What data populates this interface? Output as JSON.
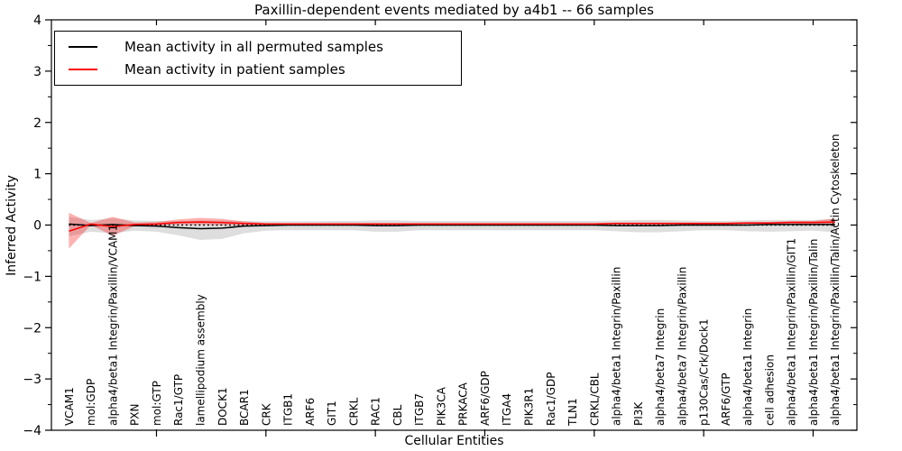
{
  "figure": {
    "title": "Paxillin-dependent events mediated by a4b1 -- 66 samples",
    "xlabel": "Cellular Entities",
    "ylabel": "Inferred Activity"
  },
  "legend": {
    "items": [
      {
        "label": "Mean activity in all permuted samples",
        "color": "#000000"
      },
      {
        "label": "Mean activity in patient samples",
        "color": "#ff0000"
      }
    ]
  },
  "chart_data": {
    "type": "line",
    "title": "Paxillin-dependent events mediated by a4b1 -- 66 samples",
    "xlabel": "Cellular Entities",
    "ylabel": "Inferred Activity",
    "ylim": [
      -4,
      4
    ],
    "yticks": [
      4,
      3,
      2,
      1,
      0,
      -1,
      -2,
      -3,
      -4
    ],
    "ytick_labels": [
      "4",
      "3",
      "2",
      "1",
      "0",
      "−1",
      "−2",
      "−3",
      "−4"
    ],
    "minor_ytick_step": 0.5,
    "xlim": [
      0.2,
      37.0
    ],
    "xticks": [
      5,
      10,
      15,
      20,
      25,
      30,
      35
    ],
    "grid": false,
    "legend_position": "upper left",
    "categories": [
      "VCAM1",
      "mol:GDP",
      "alpha4/beta1 Integrin/Paxillin/VCAM1",
      "PXN",
      "mol:GTP",
      "Rac1/GTP",
      "lamellipodium assembly",
      "DOCK1",
      "BCAR1",
      "CRK",
      "ITGB1",
      "ARF6",
      "GIT1",
      "CRKL",
      "RAC1",
      "CBL",
      "ITGB7",
      "PIK3CA",
      "PRKACA",
      "ARF6/GDP",
      "ITGA4",
      "PIK3R1",
      "Rac1/GDP",
      "TLN1",
      "CRKL/CBL",
      "alpha4/beta1 Integrin/Paxillin",
      "PI3K",
      "alpha4/beta7 Integrin",
      "alpha4/beta7 Integrin/Paxillin",
      "p130Cas/Crk/Dock1",
      "ARF6/GTP",
      "alpha4/beta1 Integrin",
      "cell adhesion",
      "alpha4/beta1 Integrin/Paxillin/GIT1",
      "alpha4/beta1 Integrin/Paxillin/Talin",
      "alpha4/beta1 Integrin/Paxillin/Talin/Actin Cytoskeleton"
    ],
    "series": [
      {
        "name": "Mean activity in all permuted samples",
        "color": "#000000",
        "style": "solid",
        "values": [
          0.02,
          -0.01,
          0.01,
          -0.01,
          -0.02,
          -0.05,
          -0.07,
          -0.06,
          -0.02,
          -0.01,
          0,
          0,
          0,
          0,
          -0.01,
          -0.01,
          0,
          0,
          0,
          0,
          0,
          0,
          0,
          0,
          0,
          -0.01,
          -0.01,
          -0.01,
          0,
          0,
          0,
          0,
          0.01,
          0.01,
          0.01,
          0.01
        ]
      },
      {
        "name": "Mean activity in patient samples",
        "color": "#ff0000",
        "style": "solid",
        "values": [
          -0.12,
          0.02,
          -0.03,
          0.01,
          0.02,
          0.05,
          0.06,
          0.05,
          0.03,
          0.02,
          0.02,
          0.02,
          0.02,
          0.02,
          0.02,
          0.02,
          0.02,
          0.02,
          0.02,
          0.02,
          0.02,
          0.02,
          0.02,
          0.02,
          0.02,
          0.03,
          0.03,
          0.03,
          0.03,
          0.03,
          0.03,
          0.04,
          0.04,
          0.05,
          0.05,
          0.06
        ]
      }
    ],
    "bands": [
      {
        "name": "permuted-range",
        "color": "rgba(0,0,0,0.13)",
        "hi": [
          0.16,
          0.1,
          0.13,
          0.09,
          0.08,
          0.08,
          0.09,
          0.09,
          0.08,
          0.07,
          0.07,
          0.07,
          0.08,
          0.08,
          0.09,
          0.09,
          0.08,
          0.08,
          0.08,
          0.08,
          0.08,
          0.08,
          0.08,
          0.08,
          0.08,
          0.09,
          0.1,
          0.1,
          0.09,
          0.08,
          0.08,
          0.09,
          0.1,
          0.1,
          0.1,
          0.12
        ],
        "lo": [
          -0.22,
          -0.13,
          -0.16,
          -0.11,
          -0.13,
          -0.2,
          -0.29,
          -0.27,
          -0.16,
          -0.11,
          -0.1,
          -0.1,
          -0.1,
          -0.1,
          -0.13,
          -0.13,
          -0.1,
          -0.1,
          -0.1,
          -0.1,
          -0.1,
          -0.1,
          -0.1,
          -0.1,
          -0.1,
          -0.12,
          -0.14,
          -0.14,
          -0.12,
          -0.1,
          -0.1,
          -0.12,
          -0.13,
          -0.12,
          -0.11,
          -0.14
        ]
      },
      {
        "name": "patient-range",
        "color": "rgba(255,0,0,0.30)",
        "hi": [
          0.24,
          0.04,
          0.16,
          0.05,
          0.06,
          0.11,
          0.14,
          0.12,
          0.07,
          0.04,
          0.04,
          0.04,
          0.04,
          0.04,
          0.04,
          0.04,
          0.04,
          0.04,
          0.04,
          0.04,
          0.04,
          0.04,
          0.04,
          0.04,
          0.04,
          0.05,
          0.05,
          0.05,
          0.05,
          0.05,
          0.05,
          0.06,
          0.06,
          0.08,
          0.08,
          0.13
        ],
        "lo": [
          -0.46,
          0.0,
          -0.21,
          -0.02,
          -0.01,
          0.01,
          0.01,
          0.0,
          0.0,
          0.01,
          0.01,
          0.01,
          0.01,
          0.01,
          0.01,
          0.01,
          0.01,
          0.01,
          0.01,
          0.01,
          0.01,
          0.01,
          0.01,
          0.01,
          0.01,
          0.01,
          0.01,
          0.01,
          0.01,
          0.01,
          0.01,
          0.02,
          0.02,
          0.03,
          0.02,
          -0.01
        ]
      }
    ],
    "zero_line": {
      "y": 0,
      "style": "dotted",
      "color": "#000000"
    }
  }
}
